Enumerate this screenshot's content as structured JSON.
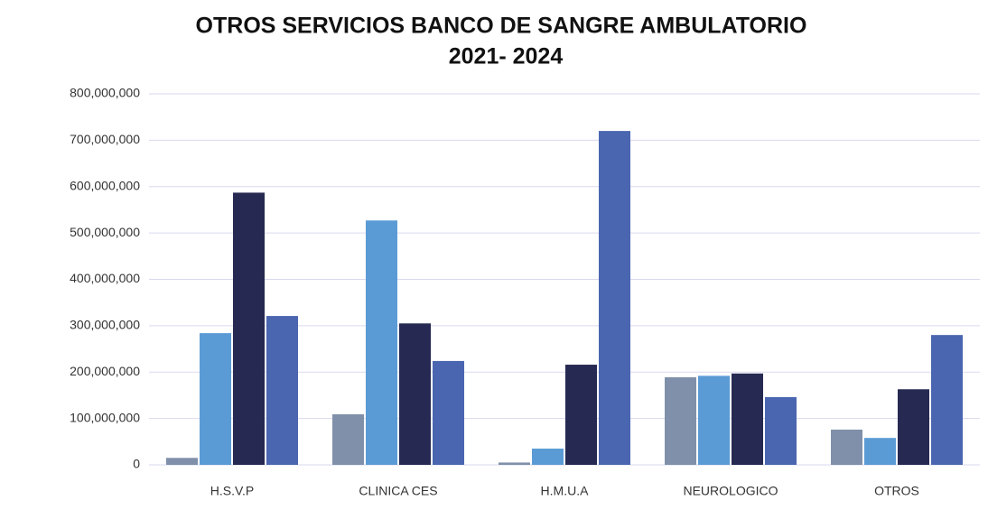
{
  "chart_data": {
    "type": "bar",
    "title": "OTROS SERVICIOS BANCO DE SANGRE AMBULATORIO",
    "subtitle": "2021- 2024",
    "categories": [
      "H.S.V.P",
      "CLINICA CES",
      "H.M.U.A",
      "NEUROLOGICO",
      "OTROS"
    ],
    "series": [
      {
        "color": "#8090aa",
        "values": [
          15000000,
          109000000,
          5000000,
          189000000,
          76000000
        ]
      },
      {
        "color": "#5b9bd5",
        "values": [
          284000000,
          527000000,
          35000000,
          192000000,
          58000000
        ]
      },
      {
        "color": "#262a52",
        "values": [
          587000000,
          305000000,
          216000000,
          197000000,
          163000000
        ]
      },
      {
        "color": "#4a66b0",
        "values": [
          321000000,
          224000000,
          720000000,
          146000000,
          280000000
        ]
      }
    ],
    "ylim": [
      0,
      800000000
    ],
    "yticks": [
      0,
      {
        "value": 100000000,
        "label": "100,000,000"
      },
      {
        "value": 200000000,
        "label": "200,000,000"
      },
      {
        "value": 300000000,
        "label": "300,000,000"
      },
      {
        "value": 400000000,
        "label": "400,000,000"
      },
      {
        "value": 500000000,
        "label": "500,000,000"
      },
      {
        "value": 600000000,
        "label": "600,000,000"
      },
      {
        "value": 700000000,
        "label": "700,000,000"
      },
      {
        "value": 800000000,
        "label": "800,000,000"
      }
    ],
    "grid": true
  }
}
